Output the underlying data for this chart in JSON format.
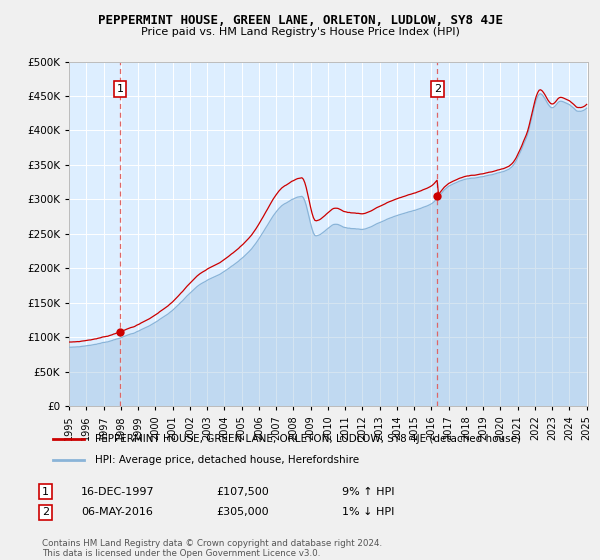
{
  "title": "PEPPERMINT HOUSE, GREEN LANE, ORLETON, LUDLOW, SY8 4JE",
  "subtitle": "Price paid vs. HM Land Registry's House Price Index (HPI)",
  "legend_line1": "PEPPERMINT HOUSE, GREEN LANE, ORLETON, LUDLOW, SY8 4JE (detached house)",
  "legend_line2": "HPI: Average price, detached house, Herefordshire",
  "annotation1_label": "1",
  "annotation1_date": "16-DEC-1997",
  "annotation1_price": "£107,500",
  "annotation1_hpi": "9% ↑ HPI",
  "annotation2_label": "2",
  "annotation2_date": "06-MAY-2016",
  "annotation2_price": "£305,000",
  "annotation2_hpi": "1% ↓ HPI",
  "footnote1": "Contains HM Land Registry data © Crown copyright and database right 2024.",
  "footnote2": "This data is licensed under the Open Government Licence v3.0.",
  "sale1_year": 1997.96,
  "sale1_value": 107500,
  "sale2_year": 2016.35,
  "sale2_value": 305000,
  "hpi_color": "#8ab4d8",
  "price_color": "#cc0000",
  "plot_bg": "#ddeeff",
  "sale_marker_color": "#cc0000",
  "vline_color": "#dd6666",
  "grid_color": "#ffffff",
  "annotation_box_color": "#cc0000",
  "ylim": [
    0,
    500000
  ],
  "yticks": [
    0,
    50000,
    100000,
    150000,
    200000,
    250000,
    300000,
    350000,
    400000,
    450000,
    500000
  ],
  "year_start": 1995,
  "year_end": 2025
}
